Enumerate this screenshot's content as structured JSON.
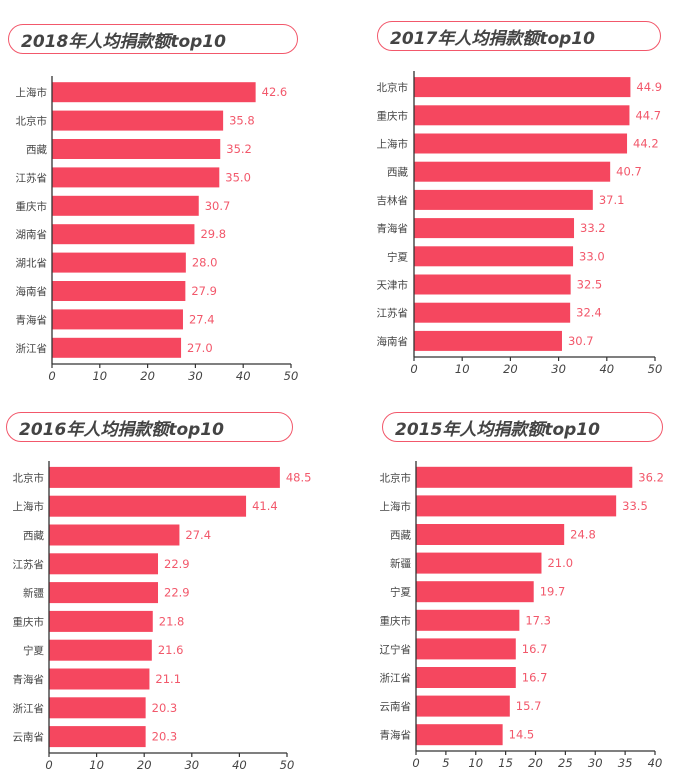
{
  "colors": {
    "bar": "#f5475f",
    "label": "#f2586b",
    "axis": "#333333",
    "border": "#f2586b"
  },
  "chart_data": [
    {
      "type": "bar",
      "orientation": "horizontal",
      "title": "2018年人均捐款额top10",
      "categories": [
        "上海市",
        "北京市",
        "西藏",
        "江苏省",
        "重庆市",
        "湖南省",
        "湖北省",
        "海南省",
        "青海省",
        "浙江省"
      ],
      "values": [
        42.6,
        35.8,
        35.2,
        35.0,
        30.7,
        29.8,
        28.0,
        27.9,
        27.4,
        27.0
      ],
      "value_labels": [
        "42.6",
        "35.8",
        "35.2",
        "35.0",
        "30.7",
        "29.8",
        "28.0",
        "27.9",
        "27.4",
        "27.0"
      ],
      "xlim": [
        0,
        50
      ],
      "xticks": [
        0,
        10,
        20,
        30,
        40,
        50
      ],
      "grid": false
    },
    {
      "type": "bar",
      "orientation": "horizontal",
      "title": "2017年人均捐款额top10",
      "categories": [
        "北京市",
        "重庆市",
        "上海市",
        "西藏",
        "吉林省",
        "青海省",
        "宁夏",
        "天津市",
        "江苏省",
        "海南省"
      ],
      "values": [
        44.9,
        44.7,
        44.2,
        40.7,
        37.1,
        33.2,
        33.0,
        32.5,
        32.4,
        30.7
      ],
      "value_labels": [
        "44.9",
        "44.7",
        "44.2",
        "40.7",
        "37.1",
        "33.2",
        "33.0",
        "32.5",
        "32.4",
        "30.7"
      ],
      "xlim": [
        0,
        50
      ],
      "xticks": [
        0,
        10,
        20,
        30,
        40,
        50
      ],
      "grid": false
    },
    {
      "type": "bar",
      "orientation": "horizontal",
      "title": "2016年人均捐款额top10",
      "categories": [
        "北京市",
        "上海市",
        "西藏",
        "江苏省",
        "新疆",
        "重庆市",
        "宁夏",
        "青海省",
        "浙江省",
        "云南省"
      ],
      "values": [
        48.5,
        41.4,
        27.4,
        22.9,
        22.9,
        21.8,
        21.6,
        21.1,
        20.3,
        20.3
      ],
      "value_labels": [
        "48.5",
        "41.4",
        "27.4",
        "22.9",
        "22.9",
        "21.8",
        "21.6",
        "21.1",
        "20.3",
        "20.3"
      ],
      "xlim": [
        0,
        50
      ],
      "xticks": [
        0,
        10,
        20,
        30,
        40,
        50
      ],
      "grid": false
    },
    {
      "type": "bar",
      "orientation": "horizontal",
      "title": "2015年人均捐款额top10",
      "categories": [
        "北京市",
        "上海市",
        "西藏",
        "新疆",
        "宁夏",
        "重庆市",
        "辽宁省",
        "浙江省",
        "云南省",
        "青海省"
      ],
      "values": [
        36.2,
        33.5,
        24.8,
        21.0,
        19.7,
        17.3,
        16.7,
        16.7,
        15.7,
        14.5
      ],
      "value_labels": [
        "36.2",
        "33.5",
        "24.8",
        "21.0",
        "19.7",
        "17.3",
        "16.7",
        "16.7",
        "15.7",
        "14.5"
      ],
      "xlim": [
        0,
        40
      ],
      "xticks": [
        0,
        5,
        10,
        15,
        20,
        25,
        30,
        35,
        40
      ],
      "grid": false
    }
  ]
}
